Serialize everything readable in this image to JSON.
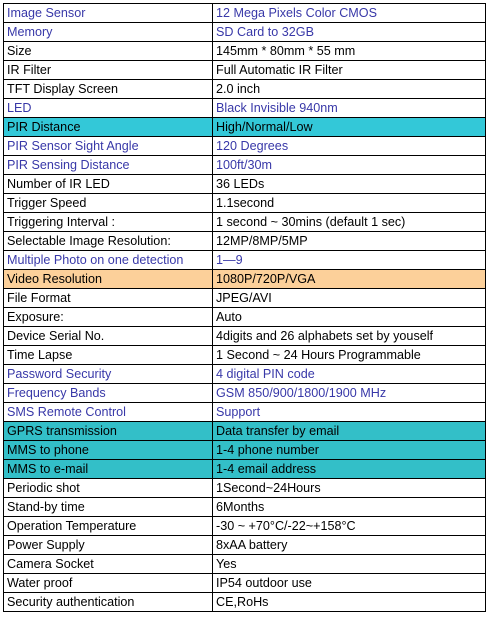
{
  "rows": [
    {
      "label": "Image Sensor",
      "value": "12 Mega Pixels Color CMOS",
      "style": "blue"
    },
    {
      "label": "Memory",
      "value": "SD Card to 32GB",
      "style": "blue"
    },
    {
      "label": "Size",
      "value": "145mm * 80mm * 55 mm",
      "style": "plain"
    },
    {
      "label": "IR Filter",
      "value": "Full Automatic IR Filter",
      "style": "plain"
    },
    {
      "label": "TFT Display Screen",
      "value": "2.0 inch",
      "style": "plain"
    },
    {
      "label": "LED",
      "value": "Black Invisible 940nm",
      "style": "blue"
    },
    {
      "label": "PIR Distance",
      "value": "High/Normal/Low",
      "style": "cyan"
    },
    {
      "label": "PIR Sensor Sight Angle",
      "value": "120 Degrees",
      "style": "blue"
    },
    {
      "label": "PIR Sensing Distance",
      "value": "100ft/30m",
      "style": "blue"
    },
    {
      "label": "Number of IR LED",
      "value": "36 LEDs",
      "style": "plain"
    },
    {
      "label": "Trigger Speed",
      "value": "1.1second",
      "style": "plain"
    },
    {
      "label": "Triggering Interval :",
      "value": "1 second ~ 30mins (default 1 sec)",
      "style": "plain"
    },
    {
      "label": "Selectable Image Resolution:",
      "value": "12MP/8MP/5MP",
      "style": "plain"
    },
    {
      "label": "Multiple Photo on one detection",
      "value": "1—9",
      "style": "blue"
    },
    {
      "label": "Video Resolution",
      "value": "1080P/720P/VGA",
      "style": "orange"
    },
    {
      "label": "File Format",
      "value": "JPEG/AVI",
      "style": "plain"
    },
    {
      "label": "Exposure:",
      "value": "Auto",
      "style": "plain"
    },
    {
      "label": "Device Serial No.",
      "value": "4digits and 26 alphabets set by youself",
      "style": "plain"
    },
    {
      "label": "Time Lapse",
      "value": "1 Second ~ 24 Hours Programmable",
      "style": "plain"
    },
    {
      "label": "Password Security",
      "value": "4 digital PIN code",
      "style": "blue"
    },
    {
      "label": "Frequency Bands",
      "value": "GSM 850/900/1800/1900 MHz",
      "style": "blue"
    },
    {
      "label": "SMS Remote Control",
      "value": "Support",
      "style": "blue"
    },
    {
      "label": "GPRS transmission",
      "value": "Data transfer by email",
      "style": "cyan-dark"
    },
    {
      "label": "MMS to phone",
      "value": "1-4 phone number",
      "style": "cyan-dark"
    },
    {
      "label": "MMS to e-mail",
      "value": "1-4 email address",
      "style": "cyan-dark"
    },
    {
      "label": "Periodic shot",
      "value": "1Second~24Hours",
      "style": "plain"
    },
    {
      "label": "Stand-by time",
      "value": "6Months",
      "style": "plain"
    },
    {
      "label": "Operation Temperature",
      "value": "-30 ~ +70°C/-22~+158°C",
      "style": "plain"
    },
    {
      "label": "Power Supply",
      "value": "8xAA battery",
      "style": "plain"
    },
    {
      "label": "Camera Socket",
      "value": "Yes",
      "style": "plain"
    },
    {
      "label": "Water proof",
      "value": "IP54 outdoor use",
      "style": "plain"
    },
    {
      "label": "Security authentication",
      "value": "CE,RoHs",
      "style": "plain"
    }
  ],
  "colors": {
    "blue_text": "#3838a8",
    "cyan_fill": "#33c8d8",
    "cyan_dark_fill": "#33bfc8",
    "orange_fill": "#fcd09a",
    "border": "#000000"
  }
}
